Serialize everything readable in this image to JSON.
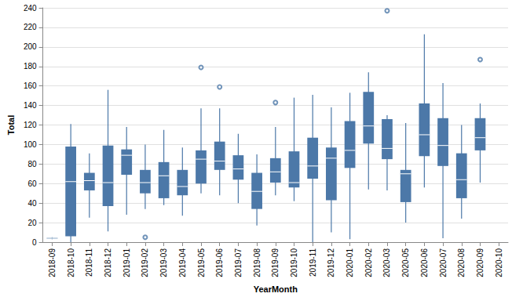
{
  "chart_data": {
    "type": "boxplot",
    "x_label": "YearMonth",
    "y_label": "Total",
    "categories": [
      "2018-09",
      "2018-10",
      "2018-11",
      "2018-12",
      "2019-01",
      "2019-02",
      "2019-03",
      "2019-04",
      "2019-05",
      "2019-06",
      "2019-07",
      "2019-08",
      "2019-09",
      "2019-10",
      "2019-11",
      "2019-12",
      "2020-01",
      "2020-02",
      "2020-03",
      "2020-05",
      "2020-06",
      "2020-07",
      "2020-08",
      "2020-09",
      "2020-10"
    ],
    "values": [
      [
        3,
        3.5,
        4,
        4.5,
        5
      ],
      [
        0,
        6,
        62,
        98,
        121
      ],
      [
        25,
        53,
        63,
        71,
        91
      ],
      [
        11,
        37,
        61,
        99,
        156
      ],
      [
        28,
        69,
        89,
        95,
        118
      ],
      [
        34,
        50,
        61,
        74,
        100
      ],
      [
        38,
        45,
        68,
        82,
        115
      ],
      [
        27,
        48,
        57,
        74,
        97
      ],
      [
        50,
        60,
        85,
        94,
        137
      ],
      [
        48,
        74,
        83,
        103,
        137
      ],
      [
        40,
        64,
        75,
        89,
        111
      ],
      [
        17,
        34,
        52,
        71,
        90
      ],
      [
        48,
        61,
        72,
        86,
        118
      ],
      [
        42,
        56,
        61,
        93,
        148
      ],
      [
        0,
        65,
        78,
        107,
        151
      ],
      [
        10,
        43,
        86,
        97,
        138
      ],
      [
        3,
        76,
        94,
        124,
        153
      ],
      [
        54,
        101,
        119,
        154,
        174
      ],
      [
        53,
        85,
        96,
        126,
        130
      ],
      [
        20,
        41,
        70,
        74,
        122
      ],
      [
        56,
        88,
        110,
        142,
        213
      ],
      [
        4,
        78,
        99,
        127,
        163
      ],
      [
        24,
        45,
        64,
        91,
        120
      ],
      [
        61,
        94,
        107,
        127,
        142
      ],
      null
    ],
    "outliers": [
      {
        "category": "2019-02",
        "value": 5
      },
      {
        "category": "2019-05",
        "value": 179
      },
      {
        "category": "2019-06",
        "value": 159
      },
      {
        "category": "2019-09",
        "value": 143
      },
      {
        "category": "2020-03",
        "value": 237
      },
      {
        "category": "2020-09",
        "value": 187
      }
    ],
    "color": "#4c78a8",
    "ylim": [
      0,
      240
    ],
    "yticks": [
      0,
      20,
      40,
      60,
      80,
      100,
      120,
      140,
      160,
      180,
      200,
      220,
      240
    ],
    "grid": true
  }
}
